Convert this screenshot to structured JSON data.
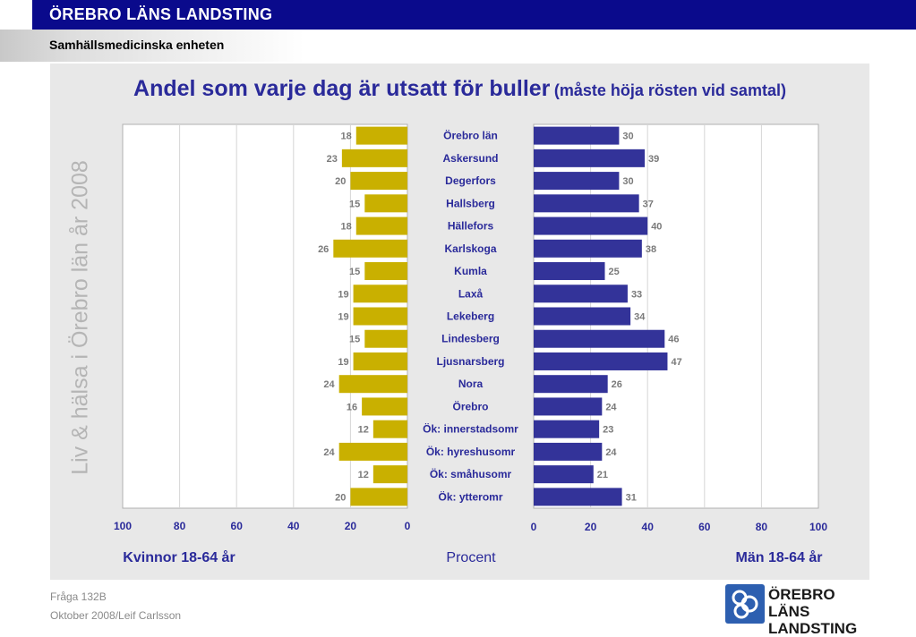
{
  "header": {
    "org_title": "ÖREBRO LÄNS LANDSTING",
    "unit": "Samhällsmedicinska enheten"
  },
  "side_text": "Liv & hälsa i Örebro län år 2008",
  "chart_title": {
    "main": "Andel som varje dag är utsatt för buller",
    "sub": "(måste höja rösten vid samtal)"
  },
  "chart_data": {
    "type": "bar",
    "title": "Andel som varje dag är utsatt för buller (måste höja rösten vid samtal)",
    "categories": [
      "Örebro län",
      "Askersund",
      "Degerfors",
      "Hallsberg",
      "Hällefors",
      "Karlskoga",
      "Kumla",
      "Laxå",
      "Lekeberg",
      "Lindesberg",
      "Ljusnarsberg",
      "Nora",
      "Örebro",
      "Ök: innerstadsomr",
      "Ök: hyreshusomr",
      "Ök: småhusomr",
      "Ök: ytteromr"
    ],
    "series": [
      {
        "name": "Kvinnor 18-64 år",
        "values": [
          18,
          23,
          20,
          15,
          18,
          26,
          15,
          19,
          19,
          15,
          19,
          24,
          16,
          12,
          24,
          12,
          20
        ],
        "color": "#c9b000"
      },
      {
        "name": "Män 18-64 år",
        "values": [
          30,
          39,
          30,
          37,
          40,
          38,
          25,
          33,
          34,
          46,
          47,
          26,
          24,
          23,
          24,
          21,
          31
        ],
        "color": "#333399"
      }
    ],
    "xlim": [
      0,
      100
    ],
    "ticks": [
      0,
      20,
      40,
      60,
      80,
      100
    ],
    "xlabel": "Procent",
    "grid": true,
    "legend": "below"
  },
  "footer": {
    "question": "Fråga 132B",
    "credit": "Oktober 2008/Leif Carlsson"
  },
  "logo": {
    "line1": "ÖREBRO LÄNS",
    "line2": "LANDSTING"
  },
  "colors": {
    "brand_blue": "#0a0a8c",
    "title_blue": "#2a2a9a",
    "women_bar": "#c9b000",
    "men_bar": "#333399"
  }
}
